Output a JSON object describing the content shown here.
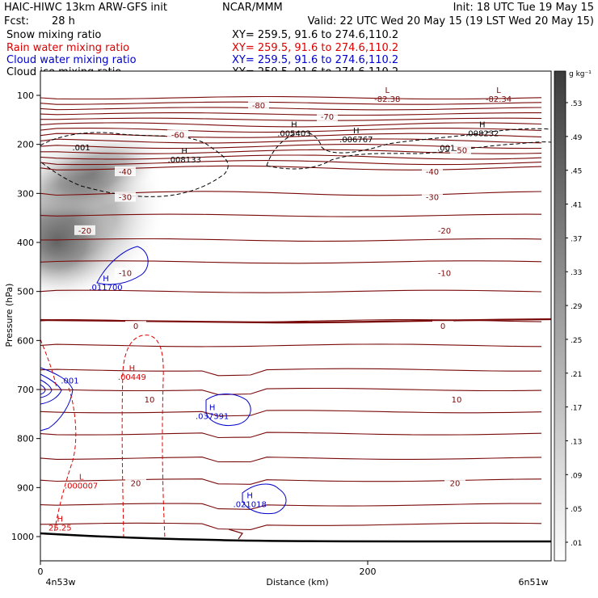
{
  "header": {
    "title": "HAIC-HIWC 13km ARW-GFS init",
    "center": "NCAR/MMM",
    "init": "Init: 18 UTC Tue 19 May 15",
    "fcst_label": "Fcst:",
    "fcst_value": "28 h",
    "valid": "Valid: 22 UTC Wed 20 May 15 (19 LST Wed 20 May 15)"
  },
  "fields": [
    {
      "name": "Snow mixing ratio",
      "xy": "XY= 259.5, 91.6 to 274.6,110.2",
      "color": "#000000"
    },
    {
      "name": "Rain water mixing ratio",
      "xy": "XY= 259.5, 91.6 to 274.6,110.2",
      "color": "#dd0000"
    },
    {
      "name": "Cloud water mixing ratio",
      "xy": "XY= 259.5, 91.6 to 274.6,110.2",
      "color": "#0000cc"
    },
    {
      "name": "Cloud ice mixing ratio",
      "xy": "XY= 259.5, 91.6 to 274.6,110.2",
      "color": "#000000"
    }
  ],
  "colorbar": {
    "unit": "g kg⁻¹",
    "labels": [
      ".53",
      ".49",
      ".45",
      ".41",
      ".37",
      ".33",
      ".29",
      ".25",
      ".21",
      ".17",
      ".13",
      ".09",
      ".05",
      ".01"
    ]
  },
  "chart_data": {
    "type": "cross-section contour",
    "xlabel": "Distance (km)",
    "ylabel": "Pressure (hPa)",
    "xlim": [
      0,
      313
    ],
    "ylim": [
      1050,
      50
    ],
    "x_ticks": [
      0,
      200
    ],
    "y_ticks": [
      100,
      200,
      300,
      400,
      500,
      600,
      700,
      800,
      900,
      1000
    ],
    "left_label": "4n53w",
    "right_label": "6n51w",
    "temperature_color": "#7a0a0a",
    "temperature_levels": [
      {
        "value": -82.38,
        "label": "-82.38",
        "p": 118
      },
      {
        "value": -82.34,
        "label": "-82.34",
        "p": 118
      },
      {
        "value": -80,
        "label": "-80",
        "p": 120
      },
      {
        "value": -70,
        "label": "-70",
        "p": 143
      },
      {
        "value": -60,
        "label": "-60",
        "p": 180
      },
      {
        "value": -50,
        "label": "-50",
        "p": 211
      },
      {
        "value": -40,
        "label": "-40",
        "p": 255
      },
      {
        "value": -30,
        "label": "-30",
        "p": 307
      },
      {
        "value": -20,
        "label": "-20",
        "p": 375
      },
      {
        "value": -10,
        "label": "-10",
        "p": 462
      },
      {
        "value": 0,
        "label": "0",
        "p": 570
      },
      {
        "value": 10,
        "label": "10",
        "p": 720
      },
      {
        "value": 20,
        "label": "20",
        "p": 890
      }
    ],
    "extrema": [
      {
        "type": "L",
        "label": "-82.38",
        "x": 212,
        "p": 113,
        "color": "#7a0a0a"
      },
      {
        "type": "L",
        "label": "-82.34",
        "x": 280,
        "p": 113,
        "color": "#7a0a0a"
      },
      {
        "type": "H",
        "label": ".005403",
        "x": 155,
        "p": 183,
        "color": "#000000"
      },
      {
        "type": "H",
        "label": ".006767",
        "x": 193,
        "p": 196,
        "color": "#000000"
      },
      {
        "type": "H",
        "label": ".008232",
        "x": 270,
        "p": 183,
        "color": "#000000"
      },
      {
        "type": "H",
        "label": ".008133",
        "x": 88,
        "p": 237,
        "color": "#000000"
      },
      {
        "type": "H",
        "label": ".011700",
        "x": 40,
        "p": 497,
        "color": "#0000cc"
      },
      {
        "type": "H",
        "label": ".00449",
        "x": 56,
        "p": 680,
        "color": "#dd0000"
      },
      {
        "type": "H",
        "label": ".037391",
        "x": 105,
        "p": 760,
        "color": "#0000cc"
      },
      {
        "type": "L",
        "label": ".000007",
        "x": 25,
        "p": 902,
        "color": "#dd0000"
      },
      {
        "type": "H",
        "label": ".021018",
        "x": 128,
        "p": 940,
        "color": "#0000cc"
      },
      {
        "type": "H",
        "label": "25.25",
        "x": 12,
        "p": 988,
        "color": "#dd0000"
      }
    ],
    "contour_labels": [
      {
        "label": ".001",
        "x": 25,
        "p": 212,
        "color": "#000000"
      },
      {
        "label": ".001",
        "x": 248,
        "p": 213,
        "color": "#000000"
      },
      {
        "label": ".001",
        "x": 18,
        "p": 688,
        "color": "#0000cc"
      }
    ],
    "snow_max_g_kg": 0.53,
    "grid": false
  }
}
